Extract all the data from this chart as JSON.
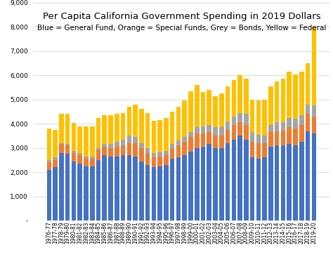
{
  "title": "Per Capita California Government Spending in 2019 Dollars",
  "subtitle": "Blue = General Fund, Orange = Special Funds, Grey = Bonds, Yellow = Federal",
  "years": [
    "1976-77",
    "1977-78",
    "1978-79",
    "1979-80",
    "1980-81",
    "1981-82",
    "1982-83",
    "1983-84",
    "1984-85",
    "1985-86",
    "1986-87",
    "1987-88",
    "1988-89",
    "1989-90",
    "1990-91",
    "1991-92",
    "1992-93",
    "1993-94",
    "1994-95",
    "1995-96",
    "1996-97",
    "1997-98",
    "1998-99",
    "1999-00",
    "2000-01",
    "2001-02",
    "2002-03",
    "2003-04",
    "2004-05",
    "2005-06",
    "2006-07",
    "2007-08",
    "2008-09",
    "2009-10",
    "2010-11",
    "2011-12",
    "2012-13",
    "2013-14",
    "2014-15",
    "2015-16",
    "2016-17",
    "2017-18",
    "2018-19",
    "2019-20"
  ],
  "general_fund": [
    2100,
    2200,
    2800,
    2750,
    2450,
    2350,
    2250,
    2250,
    2500,
    2700,
    2650,
    2650,
    2700,
    2700,
    2650,
    2450,
    2300,
    2200,
    2250,
    2300,
    2550,
    2600,
    2700,
    2850,
    3000,
    3050,
    3150,
    3000,
    3000,
    3200,
    3350,
    3500,
    3350,
    2600,
    2550,
    2600,
    3050,
    3100,
    3100,
    3150,
    3100,
    3250,
    3700,
    3600
  ],
  "special_funds": [
    300,
    300,
    350,
    350,
    350,
    350,
    300,
    300,
    400,
    350,
    350,
    400,
    400,
    500,
    550,
    550,
    500,
    400,
    380,
    400,
    400,
    500,
    550,
    600,
    600,
    550,
    500,
    500,
    500,
    550,
    600,
    550,
    600,
    650,
    650,
    600,
    600,
    600,
    620,
    700,
    700,
    700,
    700,
    700
  ],
  "bonds": [
    100,
    100,
    50,
    50,
    80,
    80,
    100,
    100,
    100,
    100,
    150,
    200,
    250,
    300,
    250,
    200,
    200,
    180,
    180,
    180,
    200,
    200,
    200,
    200,
    250,
    300,
    300,
    350,
    350,
    350,
    350,
    400,
    450,
    400,
    350,
    300,
    300,
    350,
    350,
    400,
    400,
    400,
    400,
    450
  ],
  "federal": [
    1300,
    1150,
    1200,
    1250,
    1150,
    1100,
    1250,
    1250,
    1250,
    1200,
    1200,
    1150,
    1100,
    1200,
    1350,
    1400,
    1450,
    1350,
    1350,
    1350,
    1350,
    1400,
    1500,
    1700,
    1750,
    1400,
    1450,
    1300,
    1400,
    1450,
    1500,
    1550,
    1450,
    1350,
    1400,
    1500,
    1600,
    1700,
    1800,
    1900,
    1850,
    1800,
    1700,
    3250
  ],
  "colors": {
    "general_fund": "#4472C4",
    "special_funds": "#ED7D31",
    "bonds": "#A5A5A5",
    "federal": "#FFC000"
  },
  "ylim": [
    0,
    9000
  ],
  "yticks": [
    0,
    1000,
    2000,
    3000,
    4000,
    5000,
    6000,
    7000,
    8000,
    9000
  ],
  "background_color": "#FFFFFF",
  "title_fontsize": 9.5,
  "subtitle_fontsize": 7.5,
  "tick_fontsize": 5.5
}
